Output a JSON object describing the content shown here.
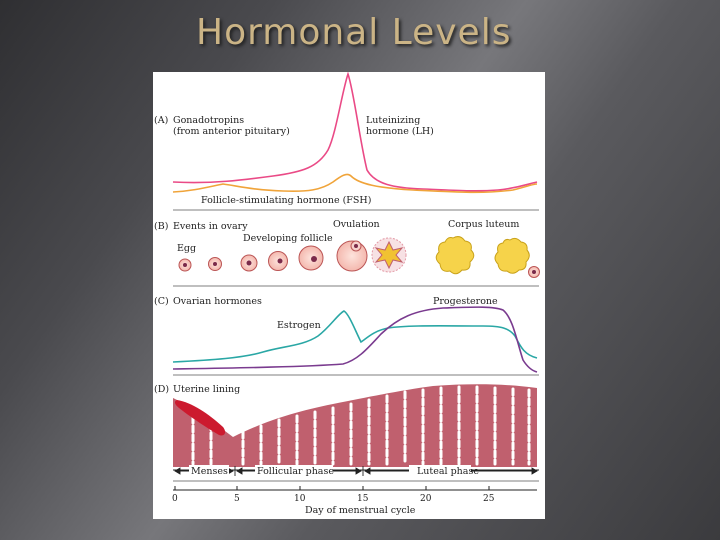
{
  "slide": {
    "title": "Hormonal Levels"
  },
  "figure": {
    "panel_a": {
      "label": "(A)",
      "heading_line1": "Gonadotropins",
      "heading_line2": "(from anterior pituitary)",
      "lh_label_line1": "Luteinizing",
      "lh_label_line2": "hormone (LH)",
      "fsh_label": "Follicle-stimulating hormone (FSH)"
    },
    "panel_b": {
      "label": "(B)",
      "heading": "Events in ovary",
      "egg_label": "Egg",
      "developing_label": "Developing follicle",
      "ovulation_label": "Ovulation",
      "corpus_label": "Corpus luteum"
    },
    "panel_c": {
      "label": "(C)",
      "heading": "Ovarian hormones",
      "estrogen_label": "Estrogen",
      "progesterone_label": "Progesterone"
    },
    "panel_d": {
      "label": "(D)",
      "heading": "Uterine lining"
    },
    "phases": {
      "menses": "Menses",
      "follicular": "Follicular phase",
      "luteal": "Luteal phase"
    },
    "axis": {
      "xlabel": "Day of menstrual cycle",
      "ticks": [
        "0",
        "5",
        "10",
        "15",
        "20",
        "25"
      ]
    },
    "colors": {
      "lh": "#ea4a86",
      "fsh": "#f0a43a",
      "estrogen": "#2aa7a5",
      "progesterone": "#7a3b8f",
      "lining": "#c0606e",
      "menses": "#cc1a2e"
    }
  }
}
